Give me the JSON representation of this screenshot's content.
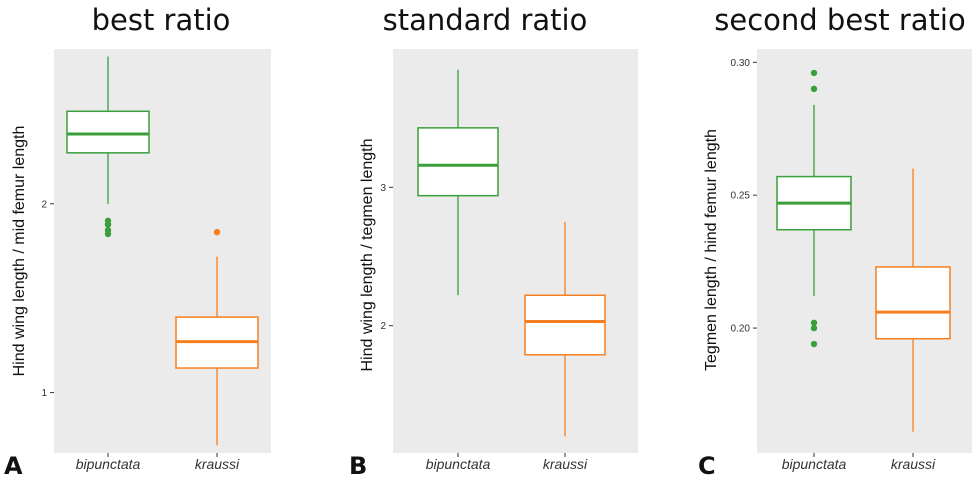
{
  "colors": {
    "bipunctata": "#3a9e3a",
    "kraussi": "#f57f20",
    "panel_bg": "#ebebeb"
  },
  "chart_data": [
    {
      "type": "box",
      "panel_letter": "A",
      "title": "best ratio",
      "ylabel": "Hind wing length / mid femur length",
      "xlabel": "",
      "categories": [
        "bipunctata",
        "kraussi"
      ],
      "ylim": [
        0.68,
        2.82
      ],
      "yticks": [
        1,
        2
      ],
      "ytick_labels": [
        "1",
        "2"
      ],
      "grid": false,
      "boxes": [
        {
          "category": "bipunctata",
          "color": "#3a9e3a",
          "whisker_low": 2.0,
          "q1": 2.27,
          "median": 2.37,
          "q3": 2.49,
          "whisker_high": 2.78,
          "outliers": [
            1.91,
            1.89,
            1.86,
            1.84
          ]
        },
        {
          "category": "kraussi",
          "color": "#f57f20",
          "whisker_low": 0.72,
          "q1": 1.13,
          "median": 1.27,
          "q3": 1.4,
          "whisker_high": 1.72,
          "outliers": [
            1.85
          ]
        }
      ]
    },
    {
      "type": "box",
      "panel_letter": "B",
      "title": "standard ratio",
      "ylabel": "Hind wing length / tegmen length",
      "xlabel": "",
      "categories": [
        "bipunctata",
        "kraussi"
      ],
      "ylim": [
        1.08,
        4.0
      ],
      "yticks": [
        2,
        3
      ],
      "ytick_labels": [
        "2",
        "3"
      ],
      "grid": false,
      "boxes": [
        {
          "category": "bipunctata",
          "color": "#3a9e3a",
          "whisker_low": 2.22,
          "q1": 2.94,
          "median": 3.16,
          "q3": 3.43,
          "whisker_high": 3.85,
          "outliers": []
        },
        {
          "category": "kraussi",
          "color": "#f57f20",
          "whisker_low": 1.2,
          "q1": 1.79,
          "median": 2.03,
          "q3": 2.22,
          "whisker_high": 2.75,
          "outliers": []
        }
      ]
    },
    {
      "type": "box",
      "panel_letter": "C",
      "title": "second best ratio",
      "ylabel": "Tegmen length / hind femur length",
      "xlabel": "",
      "categories": [
        "bipunctata",
        "kraussi"
      ],
      "ylim": [
        0.153,
        0.305
      ],
      "yticks": [
        0.2,
        0.25,
        0.3
      ],
      "ytick_labels": [
        "0.20",
        "0.25",
        "0.30"
      ],
      "grid": false,
      "boxes": [
        {
          "category": "bipunctata",
          "color": "#3a9e3a",
          "whisker_low": 0.212,
          "q1": 0.237,
          "median": 0.247,
          "q3": 0.257,
          "whisker_high": 0.284,
          "outliers": [
            0.296,
            0.29,
            0.202,
            0.2,
            0.194
          ]
        },
        {
          "category": "kraussi",
          "color": "#f57f20",
          "whisker_low": 0.161,
          "q1": 0.196,
          "median": 0.206,
          "q3": 0.223,
          "whisker_high": 0.26,
          "outliers": []
        }
      ]
    }
  ]
}
